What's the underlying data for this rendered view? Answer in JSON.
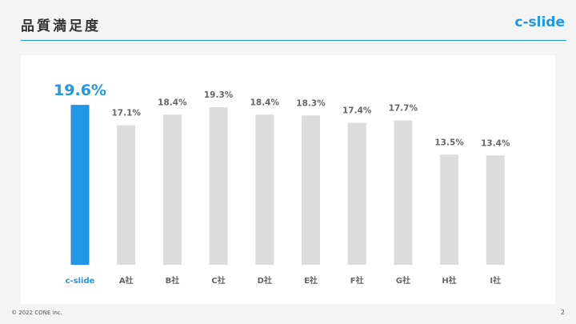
{
  "header": {
    "title": "品質満足度",
    "brand": "c-slide"
  },
  "footer": {
    "copyright": "© 2022 CONE inc.",
    "page_number": "2"
  },
  "colors": {
    "highlight": "#2196e6",
    "bar": "#dcdcdc",
    "label": "#666666",
    "accent_rule": "#2196e6"
  },
  "chart_data": {
    "type": "bar",
    "categories": [
      "c-slide",
      "A社",
      "B社",
      "C社",
      "D社",
      "E社",
      "F社",
      "G社",
      "H社",
      "I社"
    ],
    "values": [
      19.6,
      17.1,
      18.4,
      19.3,
      18.4,
      18.3,
      17.4,
      17.7,
      13.5,
      13.4
    ],
    "value_labels": [
      "19.6%",
      "17.1%",
      "18.4%",
      "19.3%",
      "18.4%",
      "18.3%",
      "17.4%",
      "17.7%",
      "13.5%",
      "13.4%"
    ],
    "highlight_index": 0,
    "unit": "%",
    "ylim": [
      0,
      20
    ],
    "grid": false,
    "legend": "none",
    "title": "",
    "xlabel": "",
    "ylabel": ""
  }
}
